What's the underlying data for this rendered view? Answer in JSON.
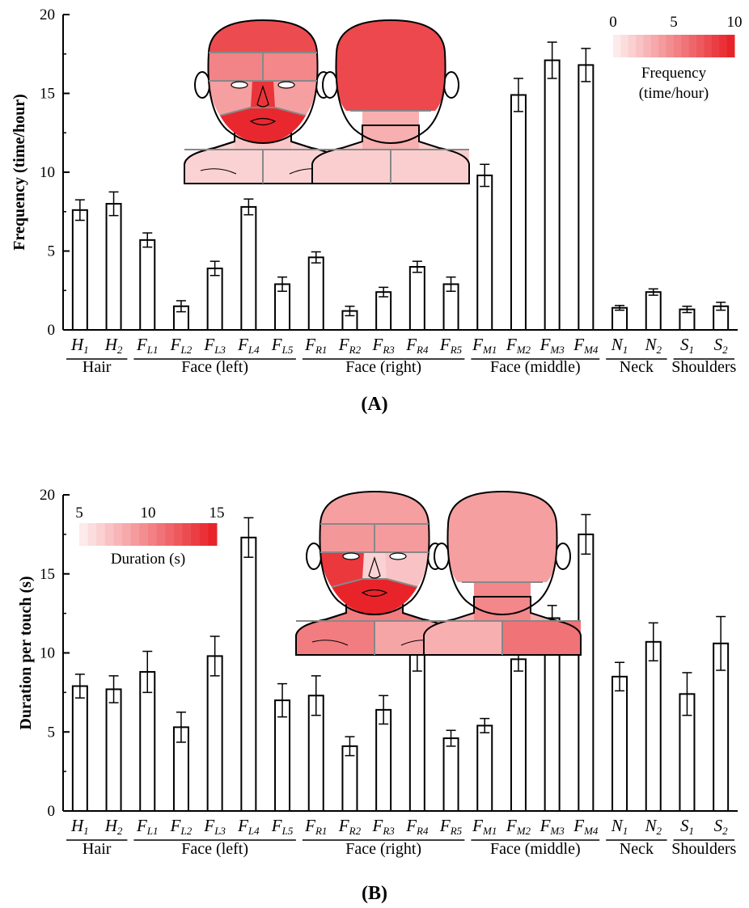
{
  "categories": [
    {
      "base": "H",
      "sub": "1"
    },
    {
      "base": "H",
      "sub": "2"
    },
    {
      "base": "F",
      "sub": "L1"
    },
    {
      "base": "F",
      "sub": "L2"
    },
    {
      "base": "F",
      "sub": "L3"
    },
    {
      "base": "F",
      "sub": "L4"
    },
    {
      "base": "F",
      "sub": "L5"
    },
    {
      "base": "F",
      "sub": "R1"
    },
    {
      "base": "F",
      "sub": "R2"
    },
    {
      "base": "F",
      "sub": "R3"
    },
    {
      "base": "F",
      "sub": "R4"
    },
    {
      "base": "F",
      "sub": "R5"
    },
    {
      "base": "F",
      "sub": "M1"
    },
    {
      "base": "F",
      "sub": "M2"
    },
    {
      "base": "F",
      "sub": "M3"
    },
    {
      "base": "F",
      "sub": "M4"
    },
    {
      "base": "N",
      "sub": "1"
    },
    {
      "base": "N",
      "sub": "2"
    },
    {
      "base": "S",
      "sub": "1"
    },
    {
      "base": "S",
      "sub": "2"
    }
  ],
  "groups": [
    {
      "label": "Hair",
      "start": 0,
      "end": 1
    },
    {
      "label": "Face (left)",
      "start": 2,
      "end": 6
    },
    {
      "label": "Face (right)",
      "start": 7,
      "end": 11
    },
    {
      "label": "Face (middle)",
      "start": 12,
      "end": 15
    },
    {
      "label": "Neck",
      "start": 16,
      "end": 17
    },
    {
      "label": "Shoulders",
      "start": 18,
      "end": 19
    }
  ],
  "colors": {
    "accent": "#e8242a",
    "heat_low": "#fdeaea",
    "outline": "#000000",
    "region_line": "#888888"
  },
  "chart_data": [
    {
      "type": "bar",
      "panel_label": "(A)",
      "ylabel": "Frequency (time/hour)",
      "ylim": [
        0,
        20
      ],
      "yticks": [
        0,
        5,
        10,
        15,
        20
      ],
      "values": [
        7.6,
        8.0,
        5.7,
        1.5,
        3.9,
        7.8,
        2.9,
        4.6,
        1.2,
        2.4,
        4.0,
        2.9,
        9.8,
        14.9,
        17.1,
        16.8,
        1.4,
        2.4,
        1.3,
        1.5
      ],
      "errors": [
        0.65,
        0.75,
        0.45,
        0.35,
        0.45,
        0.5,
        0.45,
        0.35,
        0.3,
        0.3,
        0.35,
        0.45,
        0.7,
        1.05,
        1.15,
        1.05,
        0.15,
        0.2,
        0.2,
        0.25
      ],
      "colorbar": {
        "title": "Frequency",
        "subtitle": "(time/hour)",
        "ticks": [
          "0",
          "5",
          "10"
        ],
        "range": [
          0,
          10
        ]
      },
      "head_front": {
        "H1": 0.8,
        "FL1": 0.52,
        "FR1": 0.5,
        "FM2": 0.92,
        "FM1": 0.58,
        "FM3": 0.95,
        "FM4": 0.98,
        "FL5": 0.38,
        "FR5": 0.38,
        "N1": 0.18,
        "S1": 0.12,
        "S2": 0.12
      },
      "head_back": {
        "H2": 0.82,
        "N2": 0.3,
        "S1": 0.14,
        "S2": 0.14
      }
    },
    {
      "type": "bar",
      "panel_label": "(B)",
      "ylabel": "Duration per touch (s)",
      "ylim": [
        0,
        20
      ],
      "yticks": [
        0,
        5,
        10,
        15,
        20
      ],
      "values": [
        7.9,
        7.7,
        8.8,
        5.3,
        9.8,
        17.3,
        7.0,
        7.3,
        4.1,
        6.4,
        9.9,
        4.6,
        5.4,
        9.6,
        12.2,
        17.5,
        8.5,
        10.7,
        7.4,
        10.6
      ],
      "errors": [
        0.75,
        0.85,
        1.3,
        0.95,
        1.25,
        1.25,
        1.05,
        1.25,
        0.6,
        0.9,
        1.05,
        0.5,
        0.45,
        0.75,
        0.8,
        1.25,
        0.9,
        1.2,
        1.35,
        1.7
      ],
      "colorbar": {
        "title": "Duration (s)",
        "subtitle": "",
        "ticks": [
          "5",
          "10",
          "15"
        ],
        "range": [
          5,
          15
        ]
      },
      "head_front": {
        "H1": 0.38,
        "FL1": 0.42,
        "FR1": 0.4,
        "FM2": 0.12,
        "FM1": 0.1,
        "FM3": 0.62,
        "FM4": 1.0,
        "FL5": 0.9,
        "FR5": 0.2,
        "N1": 0.55,
        "S1": 0.55,
        "S2": 0.35
      },
      "head_back": {
        "H2": 0.38,
        "N2": 0.5,
        "S1": 0.3,
        "S2": 0.6
      }
    }
  ]
}
